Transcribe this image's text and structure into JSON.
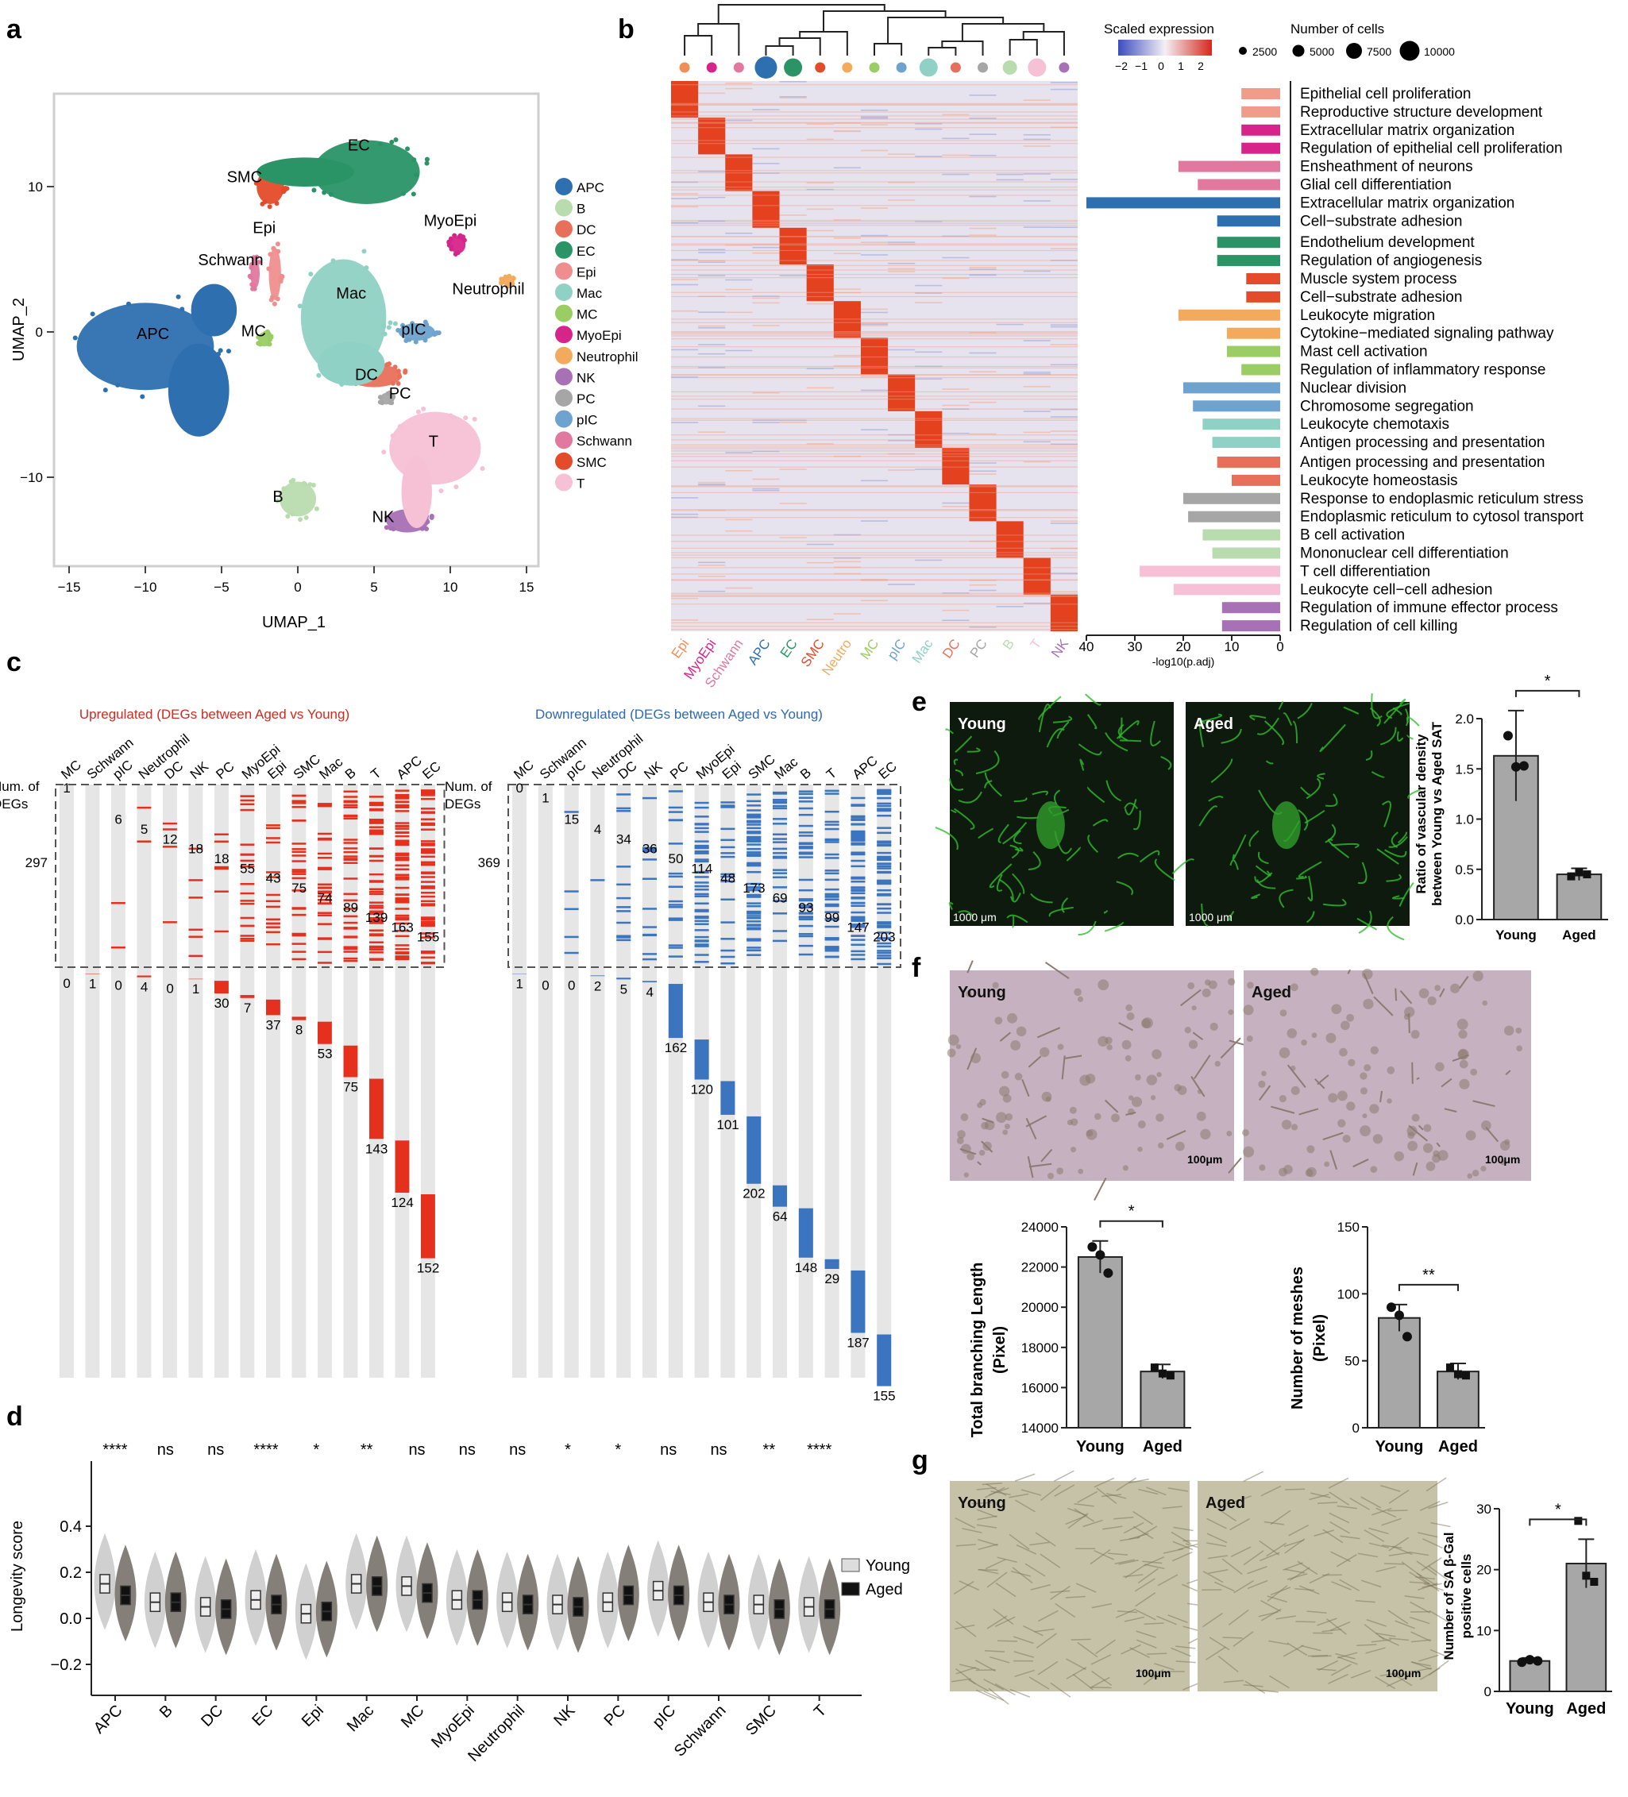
{
  "panels": {
    "a": "a",
    "b": "b",
    "c": "c",
    "d": "d",
    "e": "e",
    "f": "f",
    "g": "g"
  },
  "umap": {
    "xlabel": "UMAP_1",
    "ylabel": "UMAP_2",
    "xticks": [
      -15,
      -10,
      -5,
      0,
      5,
      10,
      15
    ],
    "yticks": [
      10,
      0,
      -10
    ],
    "clusters": [
      {
        "name": "APC",
        "color": "#2e6fb0",
        "x": -10,
        "y": -1,
        "rx": 4.5,
        "ry": 3.0
      },
      {
        "name": "B",
        "color": "#b9dcae",
        "x": 0,
        "y": -11.5,
        "rx": 1.2,
        "ry": 1.2
      },
      {
        "name": "DC",
        "color": "#e8705a",
        "x": 5,
        "y": -3,
        "rx": 1.8,
        "ry": 0.8
      },
      {
        "name": "EC",
        "color": "#2a9467",
        "x": 4.5,
        "y": 11,
        "rx": 3.5,
        "ry": 2.2
      },
      {
        "name": "Epi",
        "color": "#ef8e8e",
        "x": -1.5,
        "y": 4,
        "rx": 0.4,
        "ry": 1.8
      },
      {
        "name": "Mac",
        "color": "#8fd1c4",
        "x": 3,
        "y": 1,
        "rx": 2.8,
        "ry": 4.0
      },
      {
        "name": "MC",
        "color": "#9acd64",
        "x": -2.2,
        "y": -0.5,
        "rx": 0.4,
        "ry": 0.5
      },
      {
        "name": "MyoEpi",
        "color": "#d6248a",
        "x": 10.5,
        "y": 6,
        "rx": 0.5,
        "ry": 0.6
      },
      {
        "name": "Neutrophil",
        "color": "#f3aa5c",
        "x": 13.8,
        "y": 3.5,
        "rx": 0.4,
        "ry": 0.3
      },
      {
        "name": "NK",
        "color": "#a870b5",
        "x": 7.2,
        "y": -13,
        "rx": 1.4,
        "ry": 0.8
      },
      {
        "name": "PC",
        "color": "#a6a6a6",
        "x": 5.8,
        "y": -4.6,
        "rx": 0.4,
        "ry": 0.4
      },
      {
        "name": "pIC",
        "color": "#6ea3cf",
        "x": 7.8,
        "y": 0,
        "rx": 1.2,
        "ry": 0.6
      },
      {
        "name": "Schwann",
        "color": "#e1789e",
        "x": -2.8,
        "y": 4,
        "rx": 0.3,
        "ry": 1.0
      },
      {
        "name": "SMC",
        "color": "#e34b2a",
        "x": -1.8,
        "y": 10,
        "rx": 0.9,
        "ry": 1.2
      },
      {
        "name": "T",
        "color": "#f6c0d5",
        "x": 9,
        "y": -8,
        "rx": 3.0,
        "ry": 2.5
      }
    ]
  },
  "heatmap": {
    "legend_title": "Scaled expression",
    "legend_ticks": [
      "−2",
      "−1",
      "0",
      "1",
      "2"
    ],
    "size_title": "Number of cells",
    "size_ticks": [
      "2500",
      "5000",
      "7500",
      "10000"
    ],
    "columns": [
      {
        "name": "Epi",
        "color": "#ef8e57"
      },
      {
        "name": "MyoEpi",
        "color": "#d6248a"
      },
      {
        "name": "Schwann",
        "color": "#e1789e"
      },
      {
        "name": "APC",
        "color": "#2e6fb0"
      },
      {
        "name": "EC",
        "color": "#2a9467"
      },
      {
        "name": "SMC",
        "color": "#e34b2a"
      },
      {
        "name": "Neutro",
        "color": "#f3aa5c"
      },
      {
        "name": "MC",
        "color": "#9acd64"
      },
      {
        "name": "pIC",
        "color": "#6ea3cf"
      },
      {
        "name": "Mac",
        "color": "#8fd1c4"
      },
      {
        "name": "DC",
        "color": "#e8705a"
      },
      {
        "name": "PC",
        "color": "#a6a6a6"
      },
      {
        "name": "B",
        "color": "#b9dcae"
      },
      {
        "name": "T",
        "color": "#f6c0d5"
      },
      {
        "name": "NK",
        "color": "#a870b5"
      }
    ],
    "dot_sizes": [
      1,
      1,
      1,
      4,
      3,
      1,
      1,
      1,
      1,
      3,
      1,
      1,
      2,
      3,
      1
    ]
  },
  "pathways": {
    "xlabel": "-log10(p.adj)",
    "xticks": [
      "40",
      "30",
      "20",
      "10",
      "0"
    ],
    "items": [
      {
        "label": "Epithelial cell proliferation",
        "value": 8,
        "color": "#f19b8a"
      },
      {
        "label": "Reproductive structure development",
        "value": 8,
        "color": "#f19b8a"
      },
      {
        "label": "Extracellular matrix organization",
        "value": 8,
        "color": "#d6248a"
      },
      {
        "label": "Regulation of epithelial cell proliferation",
        "value": 8,
        "color": "#d6248a"
      },
      {
        "label": "Ensheathment of neurons",
        "value": 21,
        "color": "#e1789e"
      },
      {
        "label": "Glial cell differentiation",
        "value": 17,
        "color": "#e1789e"
      },
      {
        "label": "Extracellular matrix organization",
        "value": 40,
        "color": "#2e6fb0"
      },
      {
        "label": "Cell−substrate adhesion",
        "value": 13,
        "color": "#2e6fb0"
      },
      {
        "label": "Endothelium development",
        "value": 13,
        "color": "#2a9467"
      },
      {
        "label": "Regulation of angiogenesis",
        "value": 13,
        "color": "#2a9467"
      },
      {
        "label": "Muscle system process",
        "value": 7,
        "color": "#e34b2a"
      },
      {
        "label": "Cell−substrate adhesion",
        "value": 7,
        "color": "#e34b2a"
      },
      {
        "label": "Leukocyte migration",
        "value": 21,
        "color": "#f3aa5c"
      },
      {
        "label": "Cytokine−mediated signaling pathway",
        "value": 11,
        "color": "#f3aa5c"
      },
      {
        "label": "Mast cell activation",
        "value": 11,
        "color": "#9acd64"
      },
      {
        "label": "Regulation of inflammatory response",
        "value": 8,
        "color": "#9acd64"
      },
      {
        "label": "Nuclear division",
        "value": 20,
        "color": "#6ea3cf"
      },
      {
        "label": "Chromosome segregation",
        "value": 18,
        "color": "#6ea3cf"
      },
      {
        "label": "Leukocyte chemotaxis",
        "value": 16,
        "color": "#8fd1c4"
      },
      {
        "label": "Antigen processing and presentation",
        "value": 14,
        "color": "#8fd1c4"
      },
      {
        "label": "Antigen processing and presentation",
        "value": 13,
        "color": "#e8705a"
      },
      {
        "label": "Leukocyte homeostasis",
        "value": 10,
        "color": "#e8705a"
      },
      {
        "label": "Response to endoplasmic reticulum stress",
        "value": 20,
        "color": "#a6a6a6"
      },
      {
        "label": "Endoplasmic reticulum to cytosol transport",
        "value": 19,
        "color": "#a6a6a6"
      },
      {
        "label": "B cell activation",
        "value": 16,
        "color": "#b9dcae"
      },
      {
        "label": "Mononuclear cell differentiation",
        "value": 14,
        "color": "#b9dcae"
      },
      {
        "label": "T cell differentiation",
        "value": 29,
        "color": "#f6c0d5"
      },
      {
        "label": "Leukocyte cell−cell adhesion",
        "value": 22,
        "color": "#f6c0d5"
      },
      {
        "label": "Regulation of immune effector process",
        "value": 12,
        "color": "#a870b5"
      },
      {
        "label": "Regulation of cell killing",
        "value": 12,
        "color": "#a870b5"
      }
    ]
  },
  "degs": {
    "up_title": "Upregulated (DEGs between Aged vs Young)",
    "down_title": "Downregulated (DEGs between Aged vs Young)",
    "num_label_1": "Num. of",
    "num_label_2": "DEGs",
    "up_columns": [
      "MC",
      "Schwann",
      "pIC",
      "Neutrophil",
      "DC",
      "NK",
      "PC",
      "MyoEpi",
      "Epi",
      "SMC",
      "Mac",
      "B",
      "T",
      "APC",
      "EC"
    ],
    "up_shared_total": "297",
    "up_shared": [
      "1",
      "",
      "6",
      "5",
      "12",
      "18",
      "18",
      "55",
      "43",
      "75",
      "74",
      "89",
      "139",
      "163",
      "155"
    ],
    "up_specific": [
      "0",
      "1",
      "0",
      "4",
      "0",
      "1",
      "30",
      "7",
      "37",
      "8",
      "53",
      "75",
      "143",
      "124",
      "152"
    ],
    "down_columns": [
      "MC",
      "Schwann",
      "pIC",
      "Neutrophil",
      "DC",
      "NK",
      "PC",
      "MyoEpi",
      "Epi",
      "SMC",
      "Mac",
      "B",
      "T",
      "APC",
      "EC"
    ],
    "down_shared_total": "369",
    "down_shared": [
      "0",
      "1",
      "15",
      "4",
      "34",
      "36",
      "50",
      "114",
      "48",
      "173",
      "69",
      "93",
      "99",
      "147",
      "203"
    ],
    "down_specific": [
      "1",
      "0",
      "0",
      "2",
      "5",
      "4",
      "162",
      "120",
      "101",
      "202",
      "64",
      "148",
      "29",
      "187",
      "155"
    ]
  },
  "longevity": {
    "ylabel": "Longevity score",
    "yticks": [
      "0.4",
      "0.2",
      "0.0",
      "−0.2"
    ],
    "legend": [
      "Young",
      "Aged"
    ],
    "groups": [
      {
        "name": "APC",
        "sig": "****",
        "young": 0.15,
        "aged": 0.1
      },
      {
        "name": "B",
        "sig": "ns",
        "young": 0.07,
        "aged": 0.07
      },
      {
        "name": "DC",
        "sig": "ns",
        "young": 0.05,
        "aged": 0.04
      },
      {
        "name": "EC",
        "sig": "****",
        "young": 0.08,
        "aged": 0.06
      },
      {
        "name": "Epi",
        "sig": "*",
        "young": 0.02,
        "aged": 0.03
      },
      {
        "name": "Mac",
        "sig": "**",
        "young": 0.15,
        "aged": 0.14
      },
      {
        "name": "MC",
        "sig": "ns",
        "young": 0.14,
        "aged": 0.11
      },
      {
        "name": "MyoEpi",
        "sig": "ns",
        "young": 0.08,
        "aged": 0.08
      },
      {
        "name": "Neutrophil",
        "sig": "ns",
        "young": 0.07,
        "aged": 0.06
      },
      {
        "name": "NK",
        "sig": "*",
        "young": 0.06,
        "aged": 0.05
      },
      {
        "name": "PC",
        "sig": "*",
        "young": 0.07,
        "aged": 0.1
      },
      {
        "name": "pIC",
        "sig": "ns",
        "young": 0.12,
        "aged": 0.1
      },
      {
        "name": "Schwann",
        "sig": "ns",
        "young": 0.07,
        "aged": 0.06
      },
      {
        "name": "SMC",
        "sig": "**",
        "young": 0.06,
        "aged": 0.04
      },
      {
        "name": "T",
        "sig": "****",
        "young": 0.05,
        "aged": 0.04
      }
    ]
  },
  "panel_e": {
    "img_young": "Young",
    "img_aged": "Aged",
    "scale_young": "1000 μm",
    "scale_aged": "1000 μm",
    "ylabel_1": "Ratio of vascular density",
    "ylabel_2": "between Young vs Aged SAT",
    "yticks": [
      "2.0",
      "1.5",
      "1.0",
      "0.5",
      "0.0"
    ],
    "ymax": 2.0,
    "sig": "*",
    "bars": [
      {
        "name": "Young",
        "mean": 1.63,
        "err": 0.45,
        "points": [
          1.83,
          1.52,
          1.53
        ]
      },
      {
        "name": "Aged",
        "mean": 0.45,
        "err": 0.06,
        "points": [
          0.43,
          0.47,
          0.45
        ]
      }
    ]
  },
  "panel_f": {
    "img_young": "Young",
    "img_aged": "Aged",
    "scale": "100μm",
    "chart1": {
      "ylabel_1": "Total branching Length",
      "ylabel_2": "(Pixel)",
      "yticks": [
        "24000",
        "22000",
        "20000",
        "18000",
        "16000",
        "14000"
      ],
      "ymin": 14000,
      "ymax": 24000,
      "sig": "*",
      "bars": [
        {
          "name": "Young",
          "mean": 22500,
          "err": 800,
          "points": [
            23000,
            22600,
            21700
          ]
        },
        {
          "name": "Aged",
          "mean": 16800,
          "err": 350,
          "points": [
            17000,
            16700,
            16600
          ]
        }
      ]
    },
    "chart2": {
      "ylabel_1": "Number of meshes",
      "ylabel_2": "(Pixel)",
      "yticks": [
        "150",
        "100",
        "50",
        "0"
      ],
      "ymin": 0,
      "ymax": 150,
      "sig": "**",
      "bars": [
        {
          "name": "Young",
          "mean": 82,
          "err": 10,
          "points": [
            90,
            84,
            68
          ]
        },
        {
          "name": "Aged",
          "mean": 42,
          "err": 6,
          "points": [
            45,
            40,
            39
          ]
        }
      ]
    }
  },
  "panel_g": {
    "img_young": "Young",
    "img_aged": "Aged",
    "scale": "100μm",
    "ylabel_1": "Number of SA β-Gal",
    "ylabel_2": "positive cells",
    "yticks": [
      "30",
      "20",
      "10",
      "0"
    ],
    "ymax": 30,
    "sig": "*",
    "bars": [
      {
        "name": "Young",
        "mean": 5,
        "err": 0.5,
        "points": [
          4.8,
          5.2,
          5.0
        ]
      },
      {
        "name": "Aged",
        "mean": 21,
        "err": 4,
        "points": [
          28,
          19,
          18
        ]
      }
    ]
  }
}
